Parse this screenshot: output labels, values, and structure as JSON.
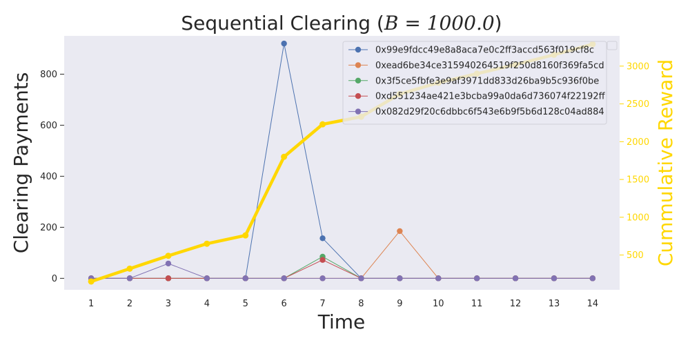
{
  "chart_data": {
    "type": "line",
    "title": "Sequential Clearing ($B = 1000.0$)",
    "title_plain": "Sequential Clearing (",
    "title_math": "B = 1000.0",
    "title_close": ")",
    "xlabel": "Time",
    "ylabel": "Clearing Payments",
    "y2label": "Cummulative Reward",
    "x": [
      1,
      2,
      3,
      4,
      5,
      6,
      7,
      8,
      9,
      10,
      11,
      12,
      13,
      14
    ],
    "xlim": [
      0.3,
      14.7
    ],
    "ylim": [
      -45,
      950
    ],
    "y2lim": [
      40,
      3400
    ],
    "yticks": [
      0,
      200,
      400,
      600,
      800
    ],
    "y2ticks": [
      500,
      1000,
      1500,
      2000,
      2500,
      3000
    ],
    "grid": false,
    "legend_position": "top-right",
    "background": "#eaeaf2",
    "series": [
      {
        "name": "0x99e9fdcc49e8a8aca7e0c2ff3accd563f019cf8c",
        "color": "#4c72b0",
        "axis": "left",
        "values": [
          0,
          0,
          0,
          0,
          0,
          920,
          157,
          0,
          0,
          0,
          0,
          0,
          0,
          0
        ]
      },
      {
        "name": "0xead6be34ce315940264519f250d8160f369fa5cd",
        "color": "#dd8452",
        "axis": "left",
        "values": [
          0,
          0,
          0,
          0,
          0,
          0,
          0,
          0,
          185,
          0,
          0,
          0,
          0,
          0
        ]
      },
      {
        "name": "0x3f5ce5fbfe3e9af3971dd833d26ba9b5c936f0be",
        "color": "#55a868",
        "axis": "left",
        "values": [
          0,
          0,
          0,
          0,
          0,
          0,
          85,
          0,
          0,
          0,
          0,
          0,
          0,
          0
        ]
      },
      {
        "name": "0xd551234ae421e3bcba99a0da6d736074f22192ff",
        "color": "#c44e52",
        "axis": "left",
        "values": [
          0,
          0,
          0,
          0,
          0,
          0,
          72,
          0,
          0,
          0,
          0,
          0,
          0,
          0
        ]
      },
      {
        "name": "0x082d29f20c6dbbc6f543e6b9f5b6d128c04ad884",
        "color": "#8172b3",
        "axis": "left",
        "values": [
          0,
          0,
          58,
          0,
          0,
          0,
          0,
          0,
          0,
          0,
          0,
          0,
          0,
          0
        ]
      }
    ],
    "reward_series": {
      "color": "#ffd700",
      "axis": "right",
      "values": [
        150,
        320,
        490,
        650,
        760,
        1800,
        2230,
        2330,
        2630,
        2780,
        2900,
        3020,
        3150,
        3290
      ]
    }
  }
}
